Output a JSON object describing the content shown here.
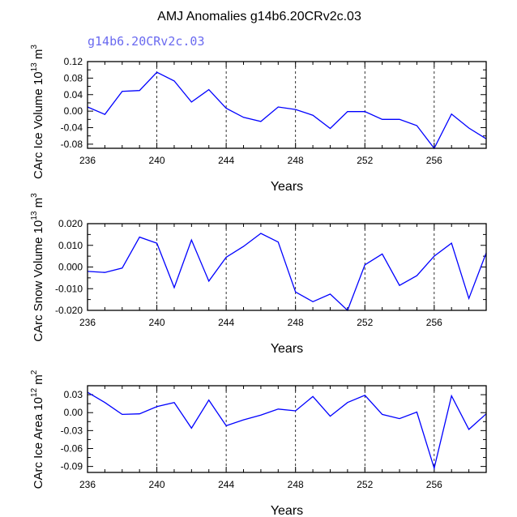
{
  "figure": {
    "title": "AMJ Anomalies g14b6.20CRv2c.03",
    "subtitle": "g14b6.20CRv2c.03",
    "series_color": "#0000ff",
    "subtitle_color": "#6a6af0"
  },
  "chart_data": [
    {
      "type": "line",
      "xlabel": "Years",
      "ylabel": "CArc Ice Volume",
      "ylabel_exp": "13",
      "ylabel_unit_exp": "3",
      "xlim": [
        236,
        259
      ],
      "ylim": [
        -0.09,
        0.12
      ],
      "xticks": [
        236,
        240,
        244,
        248,
        252,
        256
      ],
      "yticks": [
        0.12,
        0.08,
        0.04,
        0.0,
        -0.04,
        -0.08
      ],
      "ytick_labels": [
        "0.12",
        "0.08",
        "0.04",
        "0.00",
        "-0.04",
        "-0.08"
      ],
      "x": [
        236,
        237,
        238,
        239,
        240,
        241,
        242,
        243,
        244,
        245,
        246,
        247,
        248,
        249,
        250,
        251,
        252,
        253,
        254,
        255,
        256,
        257,
        258,
        259
      ],
      "y": [
        0.01,
        -0.008,
        0.048,
        0.05,
        0.094,
        0.073,
        0.022,
        0.052,
        0.007,
        -0.015,
        -0.025,
        0.01,
        0.004,
        -0.01,
        -0.042,
        -0.001,
        -0.001,
        -0.02,
        -0.02,
        -0.035,
        -0.09,
        -0.007,
        -0.041,
        -0.067
      ]
    },
    {
      "type": "line",
      "xlabel": "Years",
      "ylabel": "CArc Snow Volume",
      "ylabel_exp": "13",
      "ylabel_unit_exp": "3",
      "xlim": [
        236,
        259
      ],
      "ylim": [
        -0.02,
        0.02
      ],
      "xticks": [
        236,
        240,
        244,
        248,
        252,
        256
      ],
      "yticks": [
        0.02,
        0.01,
        0.0,
        -0.01,
        -0.02
      ],
      "ytick_labels": [
        "0.020",
        "0.010",
        "0.000",
        "-0.010",
        "-0.020"
      ],
      "x": [
        236,
        237,
        238,
        239,
        240,
        241,
        242,
        243,
        244,
        245,
        246,
        247,
        248,
        249,
        250,
        251,
        252,
        253,
        254,
        255,
        256,
        257,
        258,
        259
      ],
      "y": [
        -0.002,
        -0.0025,
        -0.0005,
        0.0138,
        0.011,
        -0.0095,
        0.0125,
        -0.0065,
        0.0045,
        0.0095,
        0.0155,
        0.0115,
        -0.0115,
        -0.016,
        -0.0125,
        -0.02,
        0.001,
        0.006,
        -0.0085,
        -0.004,
        0.005,
        0.011,
        -0.0145,
        0.0065
      ]
    },
    {
      "type": "line",
      "xlabel": "Years",
      "ylabel": "CArc Ice Area",
      "ylabel_exp": "12",
      "ylabel_unit_exp": "2",
      "xlim": [
        236,
        259
      ],
      "ylim": [
        -0.1,
        0.045
      ],
      "xticks": [
        236,
        240,
        244,
        248,
        252,
        256
      ],
      "yticks": [
        0.03,
        0.0,
        -0.03,
        -0.06,
        -0.09
      ],
      "ytick_labels": [
        "0.03",
        "0.00",
        "-0.03",
        "-0.06",
        "-0.09"
      ],
      "x": [
        236,
        237,
        238,
        239,
        240,
        241,
        242,
        243,
        244,
        245,
        246,
        247,
        248,
        249,
        250,
        251,
        252,
        253,
        254,
        255,
        256,
        257,
        258,
        259
      ],
      "y": [
        0.034,
        0.017,
        -0.003,
        -0.002,
        0.01,
        0.017,
        -0.026,
        0.021,
        -0.022,
        -0.012,
        -0.004,
        0.006,
        0.003,
        0.027,
        -0.006,
        0.017,
        0.029,
        -0.003,
        -0.01,
        0.001,
        -0.093,
        0.028,
        -0.028,
        -0.002
      ]
    }
  ]
}
